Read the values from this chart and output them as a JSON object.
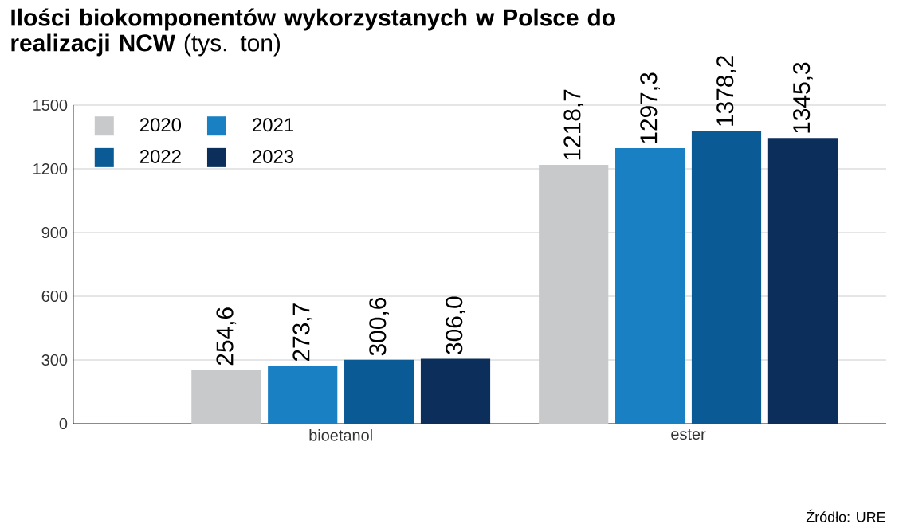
{
  "chart_data": {
    "type": "bar",
    "title": "**Ilości biokomponentów wykorzystanych w Polsce do realizacji NCW** (tys. ton)",
    "categories": [
      "bioetanol",
      "ester"
    ],
    "series": [
      {
        "name": "2020",
        "color": "#c8c9cb",
        "values": [
          254.6,
          1218.7
        ],
        "value_labels": [
          "254,6",
          "1218,7"
        ]
      },
      {
        "name": "2021",
        "color": "#1a80c4",
        "values": [
          273.7,
          1297.3
        ],
        "value_labels": [
          "273,7",
          "1297,3"
        ]
      },
      {
        "name": "2022",
        "color": "#0a5a96",
        "values": [
          300.6,
          1378.2
        ],
        "value_labels": [
          "300,6",
          "1378,2"
        ]
      },
      {
        "name": "2023",
        "color": "#0b2f5a",
        "values": [
          306.0,
          1345.3
        ],
        "value_labels": [
          "306,0",
          "1345,3"
        ]
      }
    ],
    "ylim": [
      0,
      1500
    ],
    "yticks": [
      0,
      300,
      600,
      900,
      1200,
      1500
    ],
    "grid": "y",
    "legend": "top left",
    "annotations": [
      "Źródło: URE"
    ]
  }
}
